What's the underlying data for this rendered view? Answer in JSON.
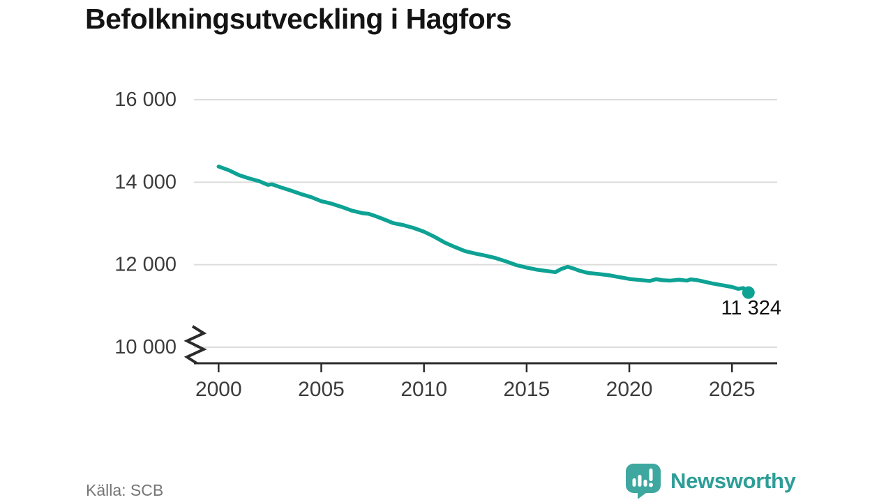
{
  "header": {
    "title": "Befolkningsutveckling i Hagfors"
  },
  "footer": {
    "source_label": "Källa: SCB",
    "brand_name": "Newsworthy"
  },
  "colors": {
    "line": "#0da294",
    "grid": "#dcdcdc",
    "axis": "#2b2b2b",
    "tick_text": "#3c3c3c",
    "title_text": "#141414",
    "source_text": "#767676",
    "annotation_text": "#111111",
    "brand_bubble": "#3ea79f",
    "brand_text": "#2d9e97"
  },
  "chart_data": {
    "type": "line",
    "title": "Befolkningsutveckling i Hagfors",
    "source": "Källa: SCB",
    "xlabel": "",
    "ylabel": "",
    "grid": "horizontal",
    "legend_position": "none",
    "axis_break": true,
    "xlim": [
      1998.8,
      2027.2
    ],
    "ylim": [
      10000,
      16000
    ],
    "x_ticks": [
      2000,
      2005,
      2010,
      2015,
      2020,
      2025
    ],
    "x_tick_labels": [
      "2000",
      "2005",
      "2010",
      "2015",
      "2020",
      "2025"
    ],
    "y_ticks": [
      10000,
      12000,
      14000,
      16000
    ],
    "y_tick_labels": [
      "10 000",
      "12 000",
      "14 000",
      "16 000"
    ],
    "end_label": "11 324",
    "end_value": 11324,
    "series": [
      {
        "name": "Befolkning i Hagfors",
        "points": [
          [
            2000.0,
            14380
          ],
          [
            2000.5,
            14290
          ],
          [
            2001.0,
            14170
          ],
          [
            2001.5,
            14090
          ],
          [
            2002.0,
            14020
          ],
          [
            2002.4,
            13935
          ],
          [
            2002.6,
            13950
          ],
          [
            2003.0,
            13880
          ],
          [
            2003.5,
            13800
          ],
          [
            2004.0,
            13715
          ],
          [
            2004.5,
            13640
          ],
          [
            2005.0,
            13540
          ],
          [
            2005.5,
            13480
          ],
          [
            2006.0,
            13400
          ],
          [
            2006.5,
            13310
          ],
          [
            2007.0,
            13250
          ],
          [
            2007.3,
            13235
          ],
          [
            2007.6,
            13185
          ],
          [
            2008.0,
            13110
          ],
          [
            2008.5,
            13010
          ],
          [
            2009.0,
            12960
          ],
          [
            2009.5,
            12890
          ],
          [
            2010.0,
            12800
          ],
          [
            2010.5,
            12680
          ],
          [
            2011.0,
            12540
          ],
          [
            2011.5,
            12430
          ],
          [
            2012.0,
            12330
          ],
          [
            2012.5,
            12270
          ],
          [
            2013.0,
            12220
          ],
          [
            2013.5,
            12160
          ],
          [
            2014.0,
            12080
          ],
          [
            2014.5,
            11990
          ],
          [
            2015.0,
            11930
          ],
          [
            2015.5,
            11880
          ],
          [
            2016.0,
            11845
          ],
          [
            2016.4,
            11820
          ],
          [
            2016.7,
            11900
          ],
          [
            2017.0,
            11950
          ],
          [
            2017.3,
            11905
          ],
          [
            2017.6,
            11850
          ],
          [
            2018.0,
            11800
          ],
          [
            2018.5,
            11775
          ],
          [
            2019.0,
            11745
          ],
          [
            2019.5,
            11700
          ],
          [
            2020.0,
            11655
          ],
          [
            2020.5,
            11630
          ],
          [
            2021.0,
            11605
          ],
          [
            2021.3,
            11650
          ],
          [
            2021.6,
            11625
          ],
          [
            2022.0,
            11615
          ],
          [
            2022.4,
            11635
          ],
          [
            2022.8,
            11615
          ],
          [
            2023.0,
            11645
          ],
          [
            2023.3,
            11625
          ],
          [
            2023.6,
            11595
          ],
          [
            2024.0,
            11550
          ],
          [
            2024.5,
            11505
          ],
          [
            2025.0,
            11460
          ],
          [
            2025.3,
            11415
          ],
          [
            2025.55,
            11435
          ],
          [
            2025.8,
            11324
          ]
        ]
      }
    ]
  }
}
